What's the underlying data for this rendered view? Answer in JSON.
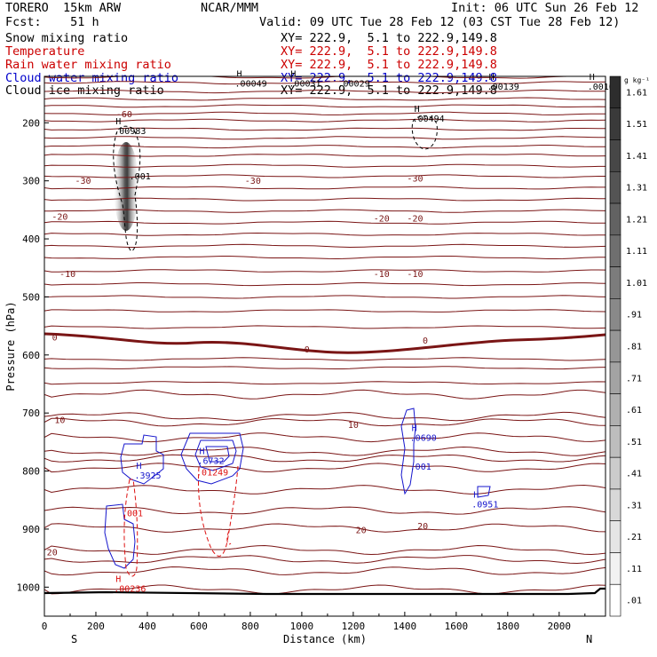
{
  "header": {
    "model": "TORERO  15km ARW",
    "center": "NCAR/MMM",
    "init": "Init: 06 UTC Sun 26 Feb 12",
    "fcst": "Fcst:    51 h",
    "valid": "Valid: 09 UTC Tue 28 Feb 12 (03 CST Tue 28 Feb 12)"
  },
  "fields": [
    {
      "name": "Snow mixing ratio",
      "xy": "XY= 222.9,  5.1 to 222.9,149.8",
      "color": "#000000"
    },
    {
      "name": "Temperature",
      "xy": "XY= 222.9,  5.1 to 222.9,149.8",
      "color": "#cc0000"
    },
    {
      "name": "Rain water mixing ratio",
      "xy": "XY= 222.9,  5.1 to 222.9,149.8",
      "color": "#cc0000"
    },
    {
      "name": "Cloud water mixing ratio",
      "xy": "XY= 222.9,  5.1 to 222.9,149.8",
      "color": "#0000cc"
    },
    {
      "name": "Cloud ice mixing ratio",
      "xy": "XY= 222.9,  5.1 to 222.9,149.8",
      "color": "#000000"
    }
  ],
  "colors": {
    "temperature": "#7a1515",
    "zero_isotherm": "#7a1515",
    "rain": "#dd1111",
    "cloud_water": "#1515cc",
    "cloud_ice": "#000000",
    "ground": "#000000"
  },
  "chart_data": {
    "type": "line",
    "xlabel": "Distance (km)",
    "ylabel": "Pressure (hPa)",
    "xlim": [
      0,
      2180
    ],
    "ylim": [
      1050,
      120
    ],
    "x_ticks": [
      "0",
      "200",
      "400",
      "600",
      "800",
      "1000",
      "1200",
      "1400",
      "1600",
      "1800",
      "2000"
    ],
    "y_ticks": [
      "200",
      "300",
      "400",
      "500",
      "600",
      "700",
      "800",
      "900",
      "1000"
    ],
    "x_end_labels": {
      "left": "S",
      "right": "N"
    },
    "colorbar": {
      "unit": "g kg⁻¹",
      "labels": [
        "1.61",
        "1.51",
        "1.41",
        "1.31",
        "1.21",
        "1.11",
        "1.01",
        ".91",
        ".81",
        ".71",
        ".61",
        ".51",
        ".41",
        ".31",
        ".21",
        ".11",
        ".01"
      ]
    },
    "isotherm_labels": [
      {
        "text": "-60",
        "x": 310,
        "p": 185
      },
      {
        "text": "-30",
        "x": 150,
        "p": 300
      },
      {
        "text": "-30",
        "x": 810,
        "p": 300
      },
      {
        "text": "-30",
        "x": 1440,
        "p": 296
      },
      {
        "text": "-20",
        "x": 60,
        "p": 362
      },
      {
        "text": "-20",
        "x": 1310,
        "p": 365
      },
      {
        "text": "-20",
        "x": 1440,
        "p": 365
      },
      {
        "text": "-10",
        "x": 90,
        "p": 460
      },
      {
        "text": "-10",
        "x": 1310,
        "p": 460
      },
      {
        "text": "-10",
        "x": 1440,
        "p": 460
      },
      {
        "text": "0",
        "x": 40,
        "p": 570
      },
      {
        "text": "0",
        "x": 1480,
        "p": 575
      },
      {
        "text": "0",
        "x": 1020,
        "p": 590
      },
      {
        "text": "10",
        "x": 60,
        "p": 712
      },
      {
        "text": "10",
        "x": 1200,
        "p": 720
      },
      {
        "text": "20",
        "x": 1470,
        "p": 895
      },
      {
        "text": "20",
        "x": 1230,
        "p": 902
      },
      {
        "text": "20",
        "x": 30,
        "p": 940
      }
    ],
    "extrema": [
      {
        "mark": "H",
        "value": ".00983",
        "x": 270,
        "p": 212,
        "color": "#000000"
      },
      {
        "mark": "",
        "value": ".001",
        "x": 330,
        "p": 290,
        "color": "#000000"
      },
      {
        "mark": "H",
        "value": ".00049",
        "x": 740,
        "p": 130,
        "color": "#000000"
      },
      {
        "mark": "H",
        "value": ".00031",
        "x": 950,
        "p": 130,
        "color": "#000000"
      },
      {
        "mark": "",
        "value": ".00029",
        "x": 1140,
        "p": 130,
        "color": "#000000"
      },
      {
        "mark": "H",
        "value": ".00494",
        "x": 1430,
        "p": 190,
        "color": "#000000"
      },
      {
        "mark": "H",
        "value": ".00139",
        "x": 1720,
        "p": 135,
        "color": "#000000"
      },
      {
        "mark": "H",
        "value": ".0016",
        "x": 2110,
        "p": 135,
        "color": "#000000"
      },
      {
        "mark": "H",
        "value": ".3925",
        "x": 350,
        "p": 805,
        "color": "#1515cc"
      },
      {
        "mark": "H",
        "value": ".6732",
        "x": 595,
        "p": 780,
        "color": "#1515cc"
      },
      {
        "mark": "",
        "value": ".01249",
        "x": 590,
        "p": 800,
        "color": "#dd1111"
      },
      {
        "mark": "H",
        "value": ".0690",
        "x": 1420,
        "p": 740,
        "color": "#1515cc"
      },
      {
        "mark": "",
        "value": ".001",
        "x": 1420,
        "p": 790,
        "color": "#1515cc"
      },
      {
        "mark": "H",
        "value": ".0951",
        "x": 1660,
        "p": 855,
        "color": "#1515cc"
      },
      {
        "mark": "",
        "value": ".001",
        "x": 300,
        "p": 870,
        "color": "#dd1111"
      },
      {
        "mark": "H",
        "value": ".00236",
        "x": 270,
        "p": 1000,
        "color": "#dd1111"
      }
    ]
  }
}
